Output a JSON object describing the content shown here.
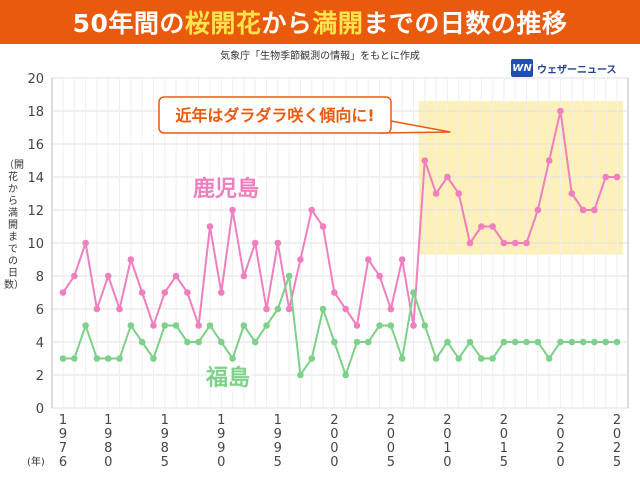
{
  "title": {
    "parts": [
      "50年間の",
      "桜開花",
      "から",
      "満開",
      "までの日数の推移"
    ]
  },
  "source_note": "気象庁「生物季節観測の情報」をもとに作成",
  "logo": {
    "mark": "WN",
    "text": "ウェザーニュース"
  },
  "callout": "近年はダラダラ咲く傾向に!",
  "colors": {
    "title_bg": "#ea5a0c",
    "highlight_text": "#ffe34d",
    "kagoshima": "#f07fbf",
    "fukushima": "#7ed18a",
    "highlight_region": "#fdf0b8",
    "callout_border": "#ea5a0c",
    "callout_text": "#ea5a0c"
  },
  "chart_data": {
    "type": "line",
    "ylabel": "（開花から満開までの日数）",
    "xlabel_unit": "(年)",
    "x": [
      1976,
      1977,
      1978,
      1979,
      1980,
      1981,
      1982,
      1983,
      1984,
      1985,
      1986,
      1987,
      1988,
      1989,
      1990,
      1991,
      1992,
      1993,
      1994,
      1995,
      1996,
      1997,
      1998,
      1999,
      2000,
      2001,
      2002,
      2003,
      2004,
      2005,
      2006,
      2007,
      2008,
      2009,
      2010,
      2011,
      2012,
      2013,
      2014,
      2015,
      2016,
      2017,
      2018,
      2019,
      2020,
      2021,
      2022,
      2023,
      2024,
      2025
    ],
    "x_tick_labels": [
      1976,
      1980,
      1985,
      1990,
      1995,
      2000,
      2005,
      2010,
      2015,
      2020,
      2025
    ],
    "ylim": [
      0,
      20
    ],
    "y_ticks": [
      0,
      2,
      4,
      6,
      8,
      10,
      12,
      14,
      16,
      18,
      20
    ],
    "grid": true,
    "highlight_range_x": [
      2008,
      2025
    ],
    "highlight_range_y": [
      9.3,
      18.6
    ],
    "series": [
      {
        "name": "鹿児島",
        "color": "#f07fbf",
        "values": [
          7,
          8,
          10,
          6,
          8,
          6,
          9,
          7,
          5,
          7,
          8,
          7,
          5,
          11,
          7,
          12,
          8,
          10,
          6,
          10,
          6,
          9,
          12,
          11,
          7,
          6,
          5,
          9,
          8,
          6,
          9,
          5,
          15,
          13,
          14,
          13,
          10,
          11,
          11,
          10,
          10,
          10,
          12,
          15,
          18,
          13,
          12,
          12,
          14,
          14
        ]
      },
      {
        "name": "福島",
        "color": "#7ed18a",
        "values": [
          3,
          3,
          5,
          3,
          3,
          3,
          5,
          4,
          3,
          5,
          5,
          4,
          4,
          5,
          4,
          3,
          5,
          4,
          5,
          6,
          8,
          2,
          3,
          6,
          4,
          2,
          4,
          4,
          5,
          5,
          3,
          7,
          5,
          3,
          4,
          3,
          4,
          3,
          3,
          4,
          4,
          4,
          4,
          3,
          4,
          4,
          4,
          4,
          4,
          4
        ]
      }
    ]
  }
}
